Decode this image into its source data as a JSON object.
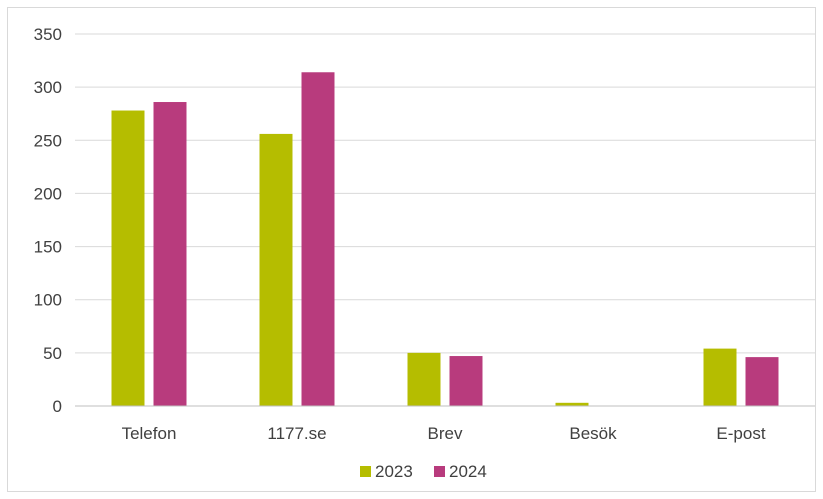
{
  "chart_data": {
    "type": "bar",
    "categories": [
      "Telefon",
      "1177.se",
      "Brev",
      "Besök",
      "E-post"
    ],
    "series": [
      {
        "name": "2023",
        "values": [
          278,
          256,
          50,
          3,
          54
        ],
        "color": "#b5bd00"
      },
      {
        "name": "2024",
        "values": [
          286,
          314,
          47,
          0,
          46
        ],
        "color": "#b83b7d"
      }
    ],
    "yticks": [
      "0",
      "50",
      "100",
      "150",
      "200",
      "250",
      "300",
      "350"
    ],
    "ylim": [
      0,
      350
    ],
    "grid": true,
    "legend_position": "bottom"
  }
}
